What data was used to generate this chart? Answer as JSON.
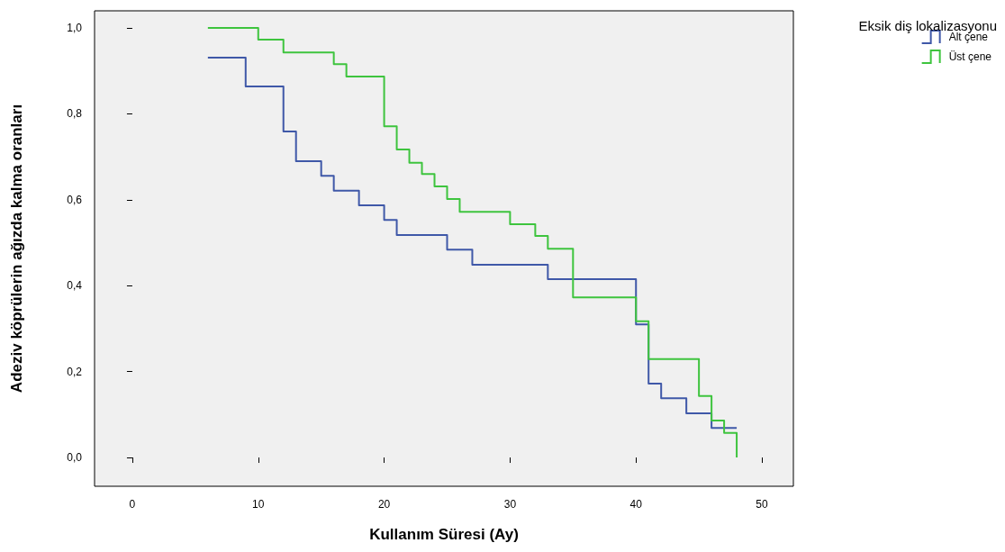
{
  "chart_data": {
    "type": "step",
    "xlabel": "Kullanım Süresi (Ay)",
    "ylabel": "Adeziv köprülerin ağızda kalma oranları",
    "legend_title": "Eksik diş lokalizasyonu",
    "legend": "top right",
    "marker": "none",
    "grid": false,
    "xlim": [
      -3,
      52.5
    ],
    "xticks": [
      0,
      10,
      20,
      30,
      40,
      50
    ],
    "ylim": [
      -0.067,
      1.04
    ],
    "yticks": [
      {
        "value": 0,
        "label": "0,0"
      },
      {
        "value": 0.2,
        "label": "0,2"
      },
      {
        "value": 0.4,
        "label": "0,4"
      },
      {
        "value": 0.6,
        "label": "0,6"
      },
      {
        "value": 0.8,
        "label": "0,8"
      },
      {
        "value": 1,
        "label": "1,0"
      }
    ],
    "series": [
      {
        "name": "Alt çene",
        "color": "#3f58a8",
        "x": [
          6,
          9,
          12,
          13,
          15,
          16,
          18,
          20,
          21,
          25,
          27,
          33,
          40,
          41,
          42,
          44,
          46,
          48
        ],
        "values": [
          0.931,
          0.864,
          0.759,
          0.69,
          0.656,
          0.621,
          0.587,
          0.553,
          0.518,
          0.484,
          0.449,
          0.415,
          0.31,
          0.172,
          0.138,
          0.103,
          0.069,
          0.069
        ]
      },
      {
        "name": "Üst çene",
        "color": "#3ec43e",
        "x": [
          6,
          10,
          12,
          16,
          17,
          20,
          21,
          22,
          23,
          24,
          25,
          26,
          30,
          32,
          33,
          35,
          40,
          41,
          45,
          46,
          47,
          48
        ],
        "values": [
          1,
          0.973,
          0.943,
          0.916,
          0.887,
          0.771,
          0.717,
          0.686,
          0.66,
          0.631,
          0.602,
          0.572,
          0.543,
          0.516,
          0.486,
          0.373,
          0.317,
          0.229,
          0.143,
          0.086,
          0.057,
          0
        ]
      }
    ]
  }
}
